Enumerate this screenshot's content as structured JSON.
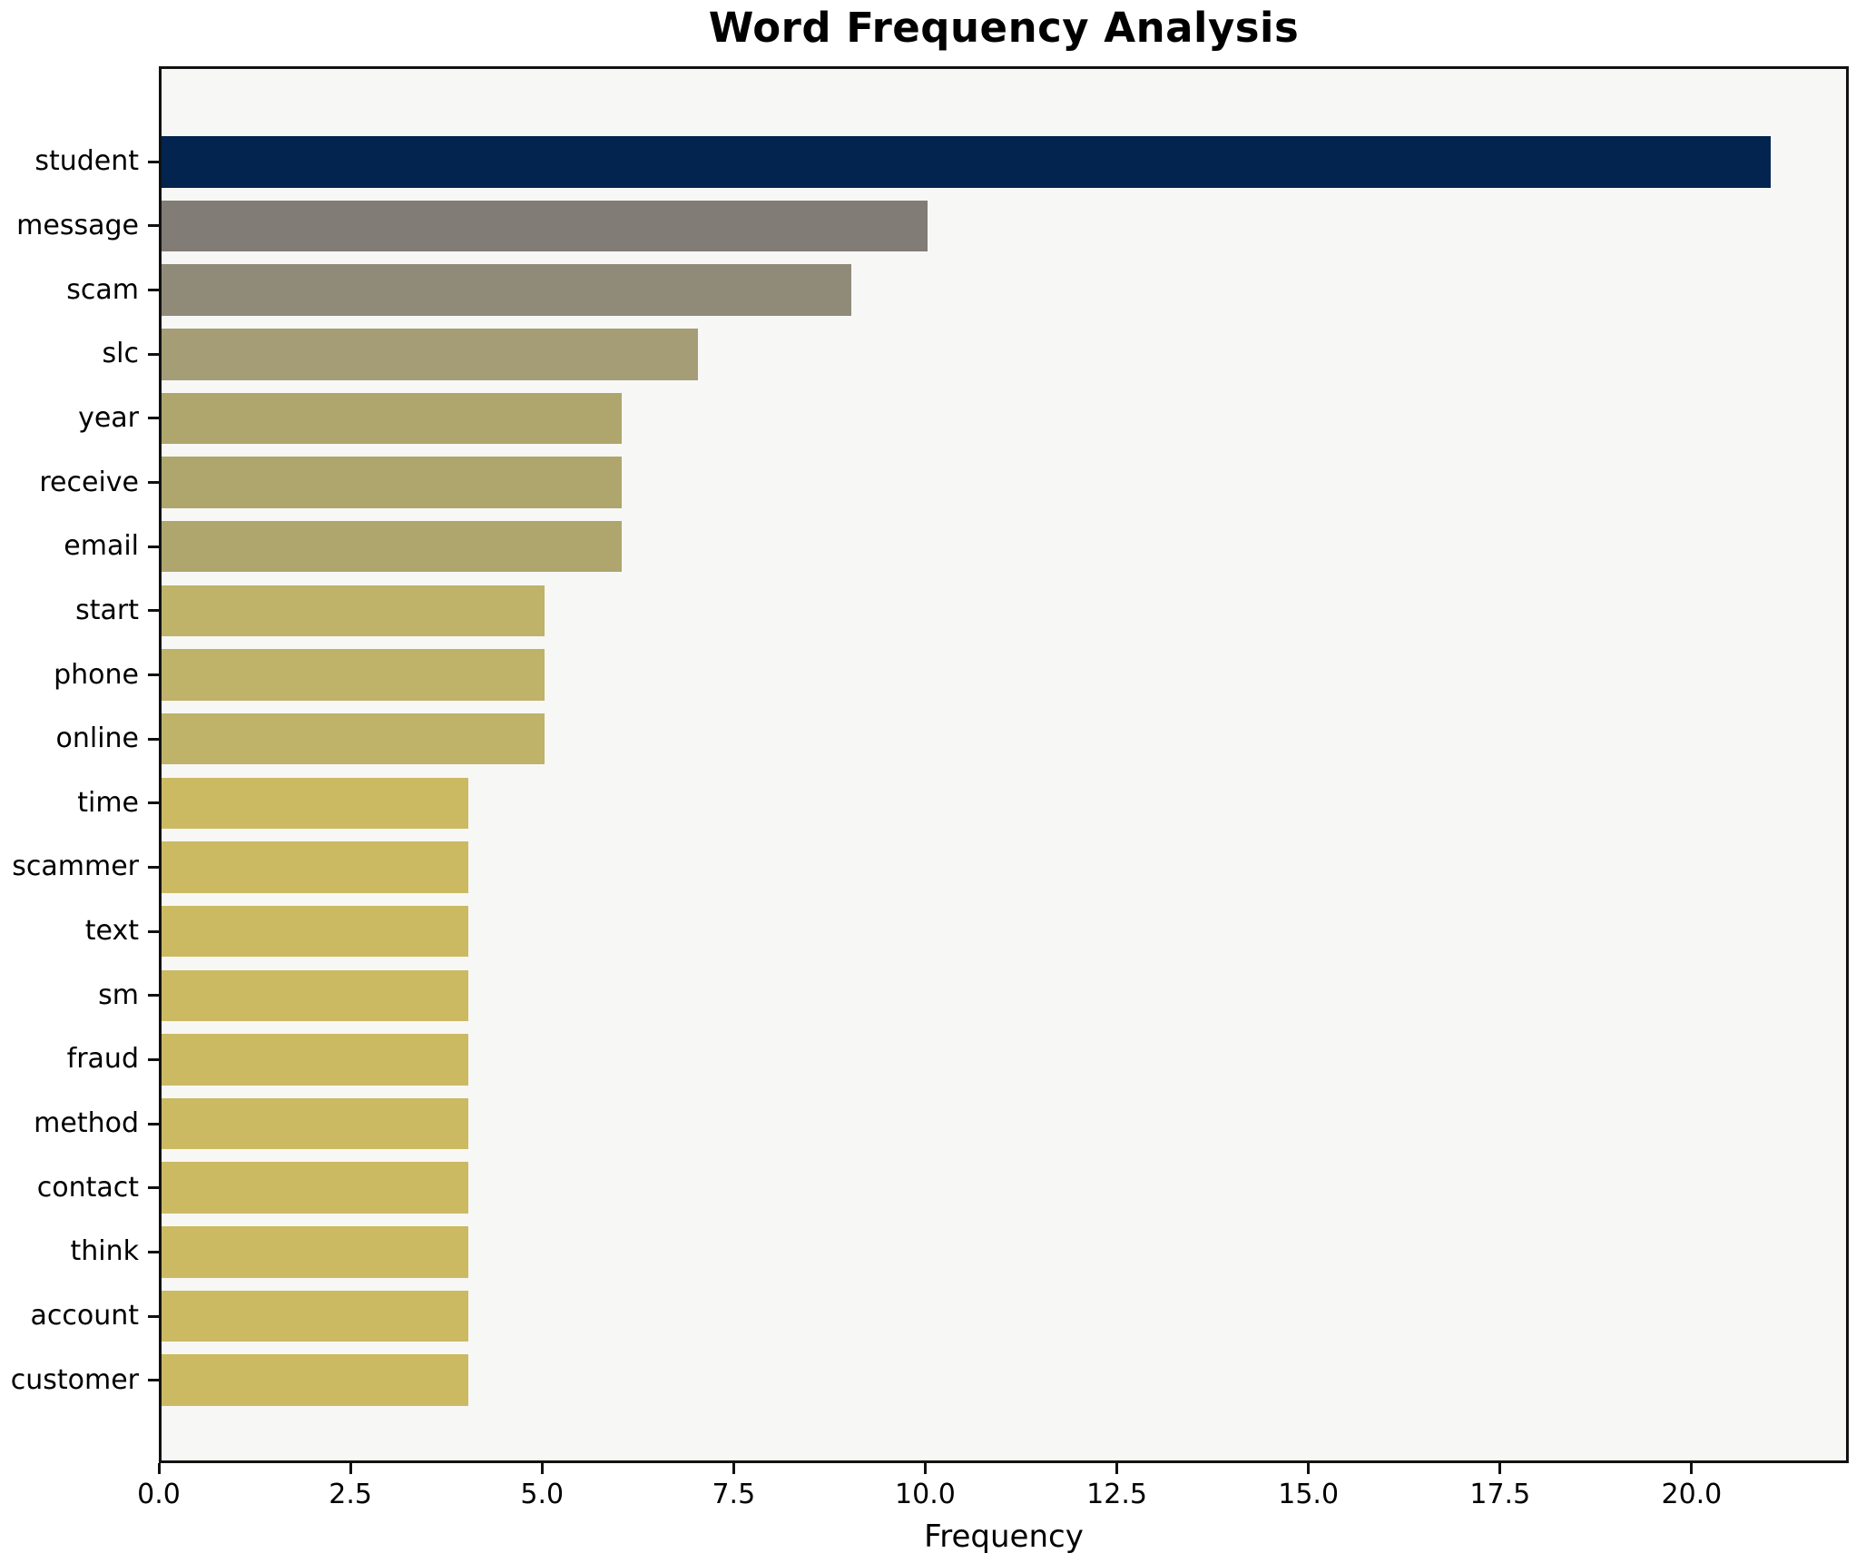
{
  "title": "Word Frequency Analysis",
  "axis": {
    "xlabel": "Frequency"
  },
  "colors": {
    "plot_background": "#f7f7f6",
    "frame": "#111111",
    "page_background": "#ffffff",
    "text": "#000000",
    "bar_max": "#02244e",
    "bar_min": "#ccba62"
  },
  "chart_data": {
    "type": "bar",
    "orientation": "horizontal",
    "title": "Word Frequency Analysis",
    "xlabel": "Frequency",
    "ylabel": "",
    "xlim": [
      0,
      22.05
    ],
    "xticks": [
      0,
      2.5,
      5,
      7.5,
      10,
      12.5,
      15,
      17.5,
      20
    ],
    "xtick_labels": [
      "0.0",
      "2.5",
      "5.0",
      "7.5",
      "10.0",
      "12.5",
      "15.0",
      "17.5",
      "20.0"
    ],
    "grid": false,
    "legend": "none",
    "categories": [
      "student",
      "message",
      "scam",
      "slc",
      "year",
      "receive",
      "email",
      "start",
      "phone",
      "online",
      "time",
      "scammer",
      "text",
      "sm",
      "fraud",
      "method",
      "contact",
      "think",
      "account",
      "customer"
    ],
    "values": [
      21,
      10,
      9,
      7,
      6,
      6,
      6,
      5,
      5,
      5,
      4,
      4,
      4,
      4,
      4,
      4,
      4,
      4,
      4,
      4
    ],
    "bars": [
      {
        "word": "student",
        "value": 21,
        "color": "#02244e"
      },
      {
        "word": "message",
        "value": 10,
        "color": "#817d76"
      },
      {
        "word": "scam",
        "value": 9,
        "color": "#908b79"
      },
      {
        "word": "slc",
        "value": 7,
        "color": "#a49d75"
      },
      {
        "word": "year",
        "value": 6,
        "color": "#aea66c"
      },
      {
        "word": "receive",
        "value": 6,
        "color": "#aea66c"
      },
      {
        "word": "email",
        "value": 6,
        "color": "#aea66c"
      },
      {
        "word": "start",
        "value": 5,
        "color": "#bfb269"
      },
      {
        "word": "phone",
        "value": 5,
        "color": "#bfb269"
      },
      {
        "word": "online",
        "value": 5,
        "color": "#bfb269"
      },
      {
        "word": "time",
        "value": 4,
        "color": "#ccba62"
      },
      {
        "word": "scammer",
        "value": 4,
        "color": "#ccba62"
      },
      {
        "word": "text",
        "value": 4,
        "color": "#ccba62"
      },
      {
        "word": "sm",
        "value": 4,
        "color": "#ccba62"
      },
      {
        "word": "fraud",
        "value": 4,
        "color": "#ccba62"
      },
      {
        "word": "method",
        "value": 4,
        "color": "#ccba62"
      },
      {
        "word": "contact",
        "value": 4,
        "color": "#ccba62"
      },
      {
        "word": "think",
        "value": 4,
        "color": "#ccba62"
      },
      {
        "word": "account",
        "value": 4,
        "color": "#ccba62"
      },
      {
        "word": "customer",
        "value": 4,
        "color": "#ccba62"
      }
    ]
  }
}
